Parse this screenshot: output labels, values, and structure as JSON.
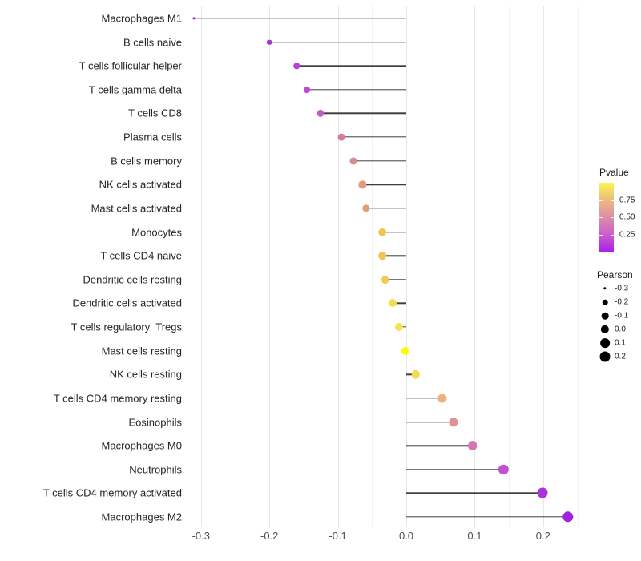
{
  "chart_data": {
    "type": "scatter",
    "subtype": "lollipop",
    "title": "",
    "xlabel": "",
    "ylabel": "",
    "x_range": [
      -0.333,
      0.263
    ],
    "grid": "on",
    "x_ticks": {
      "labels": [
        "-0.3",
        "-0.2",
        "-0.1",
        "0.0",
        "0.1",
        "0.2"
      ],
      "values": [
        -0.3,
        -0.2,
        -0.1,
        0.0,
        0.1,
        0.2
      ]
    },
    "grid_major": [
      -0.3,
      -0.2,
      -0.1,
      0.0,
      0.1,
      0.2
    ],
    "grid_minor": [
      -0.25,
      -0.15,
      -0.05,
      0.05,
      0.15,
      0.25
    ],
    "points": [
      {
        "label": "Macrophages M1",
        "pearson": -0.31,
        "color": "#9C2BD1"
      },
      {
        "label": "B cells naive",
        "pearson": -0.2,
        "color": "#A138D1"
      },
      {
        "label": "T cells follicular helper",
        "pearson": -0.16,
        "color": "#B840D4"
      },
      {
        "label": "T cells gamma delta",
        "pearson": -0.145,
        "color": "#BE4ACF"
      },
      {
        "label": "T cells CD8",
        "pearson": -0.125,
        "color": "#C45BC8"
      },
      {
        "label": "Plasma cells",
        "pearson": -0.095,
        "color": "#D57BA0"
      },
      {
        "label": "B cells memory",
        "pearson": -0.077,
        "color": "#DC8A8D"
      },
      {
        "label": "NK cells activated",
        "pearson": -0.064,
        "color": "#E59B7C"
      },
      {
        "label": "Mast cells activated",
        "pearson": -0.059,
        "color": "#E59D76"
      },
      {
        "label": "Monocytes",
        "pearson": -0.035,
        "color": "#EFC455"
      },
      {
        "label": "T cells CD4 naive",
        "pearson": -0.035,
        "color": "#EFC455"
      },
      {
        "label": "Dendritic cells resting",
        "pearson": -0.031,
        "color": "#F0CA52"
      },
      {
        "label": "Dendritic cells activated",
        "pearson": -0.02,
        "color": "#F5DE4E"
      },
      {
        "label": "T cells regulatory  Tregs",
        "pearson": -0.011,
        "color": "#F8E44C"
      },
      {
        "label": "Mast cells resting",
        "pearson": -0.001,
        "color": "#FCFD08"
      },
      {
        "label": "NK cells resting",
        "pearson": 0.014,
        "color": "#F5DA4D"
      },
      {
        "label": "T cells CD4 memory resting",
        "pearson": 0.053,
        "color": "#EAB183"
      },
      {
        "label": "Eosinophils",
        "pearson": 0.069,
        "color": "#E2918E"
      },
      {
        "label": "Macrophages M0",
        "pearson": 0.097,
        "color": "#D873B4"
      },
      {
        "label": "Neutrophils",
        "pearson": 0.142,
        "color": "#C350D2"
      },
      {
        "label": "T cells CD4 memory activated",
        "pearson": 0.199,
        "color": "#AC33D8"
      },
      {
        "label": "Macrophages M2",
        "pearson": 0.236,
        "color": "#A121DD"
      }
    ],
    "legends": {
      "pvalue": {
        "title": "Pvalue",
        "tick_labels": [
          "0.75",
          "0.50",
          "0.25"
        ],
        "tick_values": [
          0.75,
          0.5,
          0.25
        ],
        "gradient_stops": [
          {
            "p": 0.0,
            "color": "#AA20E9"
          },
          {
            "p": 0.25,
            "color": "#CC5ECC"
          },
          {
            "p": 0.5,
            "color": "#DC8FA5"
          },
          {
            "p": 0.75,
            "color": "#EBBA80"
          },
          {
            "p": 1.0,
            "color": "#FBF74E"
          }
        ]
      },
      "pearson": {
        "title": "Pearson",
        "tick_labels": [
          "-0.3",
          "-0.2",
          "-0.1",
          "0.0",
          "0.1",
          "0.2"
        ],
        "tick_values": [
          -0.3,
          -0.2,
          -0.1,
          0.0,
          0.1,
          0.2
        ],
        "dot_color": "#000000"
      }
    }
  }
}
